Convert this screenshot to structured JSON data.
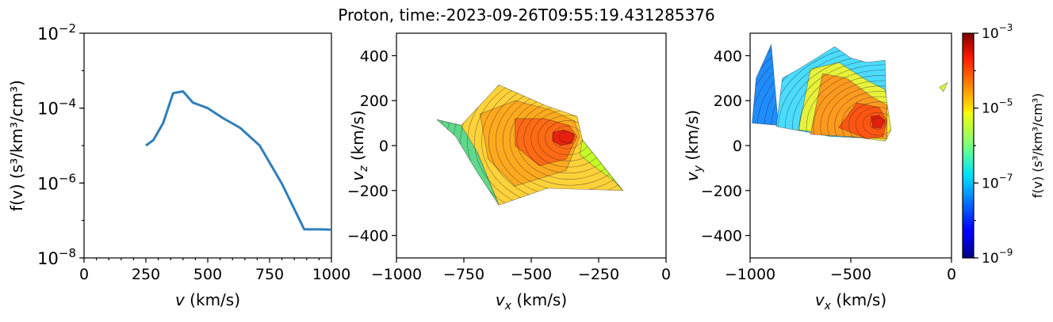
{
  "figure": {
    "title": "Proton, time:-2023-09-26T09:55:19.431285376"
  },
  "chart_data": [
    {
      "type": "line",
      "xlabel_var": "v",
      "xlabel_unit": " (km/s)",
      "ylabel": "f(v) (s³/km³/cm³)",
      "xlim": [
        0,
        1000
      ],
      "ylim": [
        1e-08,
        0.01
      ],
      "yscale": "log",
      "xticks": [
        "0",
        "250",
        "500",
        "750",
        "1000"
      ],
      "yticks": [
        {
          "base": "10",
          "exp": "−2",
          "value": 0.01
        },
        {
          "base": "10",
          "exp": "−4",
          "value": 0.0001
        },
        {
          "base": "10",
          "exp": "−6",
          "value": 1e-06
        },
        {
          "base": "10",
          "exp": "−8",
          "value": 1e-08
        }
      ],
      "series": [
        {
          "color": "#2f7ebc",
          "x": [
            250,
            280,
            320,
            360,
            400,
            440,
            500,
            560,
            630,
            710,
            800,
            890,
            950,
            1000
          ],
          "y": [
            1e-05,
            1.4e-05,
            4e-05,
            0.00025,
            0.00028,
            0.00014,
            0.0001,
            5.5e-05,
            3e-05,
            1e-05,
            9.5e-07,
            5.8e-08,
            5.8e-08,
            5.7e-08
          ]
        }
      ],
      "grid": false
    },
    {
      "type": "heatmap",
      "subtype": "filled-contour",
      "xlabel_var": "v",
      "xlabel_sub": "x",
      "xlabel_unit": " (km/s)",
      "ylabel_var": "v",
      "ylabel_sub": "z",
      "ylabel_unit": " (km/s)",
      "xlim": [
        -1000,
        0
      ],
      "ylim": [
        -500,
        500
      ],
      "xticks": [
        "−1000",
        "−750",
        "−500",
        "−250",
        "0"
      ],
      "yticks": [
        "400",
        "200",
        "0",
        "−200",
        "−400"
      ],
      "peak": {
        "x": -370,
        "y": 40,
        "log10_f": -3.8
      },
      "regions": [
        {
          "color": "#ffd23a",
          "log10_f": -4.8,
          "points": [
            [
              -850,
              115
            ],
            [
              -760,
              90
            ],
            [
              -620,
              270
            ],
            [
              -450,
              180
            ],
            [
              -330,
              130
            ],
            [
              -310,
              25
            ],
            [
              -160,
              -200
            ],
            [
              -440,
              -190
            ],
            [
              -620,
              -265
            ],
            [
              -700,
              -30
            ],
            [
              -770,
              50
            ]
          ]
        },
        {
          "color": "#ffaa1e",
          "log10_f": -4.4,
          "points": [
            [
              -690,
              140
            ],
            [
              -560,
              200
            ],
            [
              -430,
              160
            ],
            [
              -340,
              110
            ],
            [
              -320,
              40
            ],
            [
              -370,
              -110
            ],
            [
              -560,
              -180
            ],
            [
              -660,
              -60
            ]
          ]
        },
        {
          "color": "#ff6a14",
          "log10_f": -4.1,
          "points": [
            [
              -560,
              120
            ],
            [
              -450,
              120
            ],
            [
              -360,
              90
            ],
            [
              -330,
              40
            ],
            [
              -370,
              -60
            ],
            [
              -470,
              -90
            ],
            [
              -560,
              0
            ]
          ]
        },
        {
          "color": "#e8210e",
          "log10_f": -3.8,
          "points": [
            [
              -420,
              60
            ],
            [
              -380,
              70
            ],
            [
              -340,
              50
            ],
            [
              -350,
              10
            ],
            [
              -390,
              0
            ],
            [
              -420,
              20
            ]
          ]
        },
        {
          "color": "#5fd88a",
          "log10_f": -6.0,
          "points": [
            [
              -850,
              115
            ],
            [
              -760,
              90
            ],
            [
              -700,
              -30
            ],
            [
              -620,
              -265
            ],
            [
              -700,
              -120
            ],
            [
              -780,
              40
            ]
          ]
        },
        {
          "color": "#c6ff28",
          "log10_f": -5.5,
          "points": [
            [
              -310,
              25
            ],
            [
              -160,
              -200
            ],
            [
              -200,
              -150
            ],
            [
              -270,
              -90
            ],
            [
              -320,
              -40
            ]
          ]
        }
      ]
    },
    {
      "type": "heatmap",
      "subtype": "filled-contour",
      "xlabel_var": "v",
      "xlabel_sub": "x",
      "xlabel_unit": " (km/s)",
      "ylabel_var": "v",
      "ylabel_sub": "y",
      "ylabel_unit": " (km/s)",
      "xlim": [
        -1000,
        0
      ],
      "ylim": [
        -500,
        500
      ],
      "xticks": [
        "−1000",
        "−500",
        "0"
      ],
      "yticks": [
        "400",
        "200",
        "0",
        "−200",
        "−400"
      ],
      "peak": {
        "x": -370,
        "y": 100,
        "log10_f": -3.8
      },
      "regions": [
        {
          "color": "#1f8cff",
          "log10_f": -7.0,
          "points": [
            [
              -990,
              100
            ],
            [
              -970,
              300
            ],
            [
              -895,
              450
            ],
            [
              -860,
              90
            ]
          ]
        },
        {
          "color": "#4bdcff",
          "log10_f": -6.4,
          "points": [
            [
              -870,
              85
            ],
            [
              -840,
              300
            ],
            [
              -760,
              340
            ],
            [
              -580,
              440
            ],
            [
              -500,
              390
            ],
            [
              -420,
              370
            ],
            [
              -330,
              380
            ],
            [
              -320,
              30
            ],
            [
              -600,
              40
            ]
          ]
        },
        {
          "color": "#e7f23a",
          "log10_f": -5.2,
          "points": [
            [
              -760,
              70
            ],
            [
              -700,
              340
            ],
            [
              -560,
              370
            ],
            [
              -420,
              290
            ],
            [
              -330,
              250
            ],
            [
              -300,
              70
            ],
            [
              -330,
              20
            ]
          ]
        },
        {
          "color": "#ff9a1e",
          "log10_f": -4.5,
          "points": [
            [
              -700,
              50
            ],
            [
              -640,
              320
            ],
            [
              -520,
              300
            ],
            [
              -400,
              220
            ],
            [
              -320,
              180
            ],
            [
              -320,
              30
            ]
          ]
        },
        {
          "color": "#ff5512",
          "log10_f": -4.1,
          "points": [
            [
              -560,
              80
            ],
            [
              -470,
              190
            ],
            [
              -360,
              170
            ],
            [
              -320,
              110
            ],
            [
              -340,
              40
            ],
            [
              -420,
              30
            ]
          ]
        },
        {
          "color": "#e01f0c",
          "log10_f": -3.8,
          "points": [
            [
              -400,
              130
            ],
            [
              -360,
              135
            ],
            [
              -330,
              110
            ],
            [
              -350,
              80
            ],
            [
              -390,
              80
            ]
          ]
        },
        {
          "color": "#cfff2a",
          "log10_f": -5.5,
          "points": [
            [
              -60,
              260
            ],
            [
              -20,
              280
            ],
            [
              -40,
              240
            ]
          ]
        }
      ]
    }
  ],
  "colorbar": {
    "label": "f(v) (s³/km³/cm³)",
    "scale": "log",
    "range": [
      1e-09,
      0.001
    ],
    "ticks": [
      {
        "base": "10",
        "exp": "−3",
        "value": 0.001
      },
      {
        "base": "10",
        "exp": "−5",
        "value": 1e-05
      },
      {
        "base": "10",
        "exp": "−7",
        "value": 1e-07
      },
      {
        "base": "10",
        "exp": "−9",
        "value": 1e-09
      }
    ],
    "colormap": "jet"
  }
}
